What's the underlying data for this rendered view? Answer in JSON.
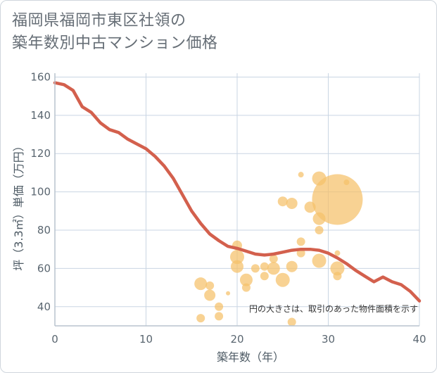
{
  "title_lines": [
    "福岡県福岡市東区社領の",
    "築年数別中古マンション価格"
  ],
  "chart_data": {
    "type": "scatter",
    "title": "福岡県福岡市東区社領の築年数別中古マンション価格",
    "xlabel": "築年数（年）",
    "ylabel": "坪（3.3㎡）単価（万円）",
    "xlim": [
      0,
      40
    ],
    "ylim": [
      30,
      162
    ],
    "xticks": [
      0,
      10,
      20,
      30,
      40
    ],
    "yticks": [
      40,
      60,
      80,
      100,
      120,
      140,
      160
    ],
    "grid": true,
    "annotation": "円の大きさは、取引のあった物件面積を示す",
    "colors": {
      "bubble": "#f5c06a",
      "line": "#d3604d",
      "grid": "#c9d5e3",
      "axis": "#b9c3cd"
    },
    "trend": {
      "x": [
        0,
        1,
        2,
        3,
        4,
        5,
        6,
        7,
        8,
        9,
        10,
        11,
        12,
        13,
        14,
        15,
        16,
        17,
        18,
        19,
        20,
        21,
        22,
        23,
        24,
        25,
        26,
        27,
        28,
        29,
        30,
        31,
        32,
        33,
        34,
        35,
        36,
        37,
        38,
        39,
        40
      ],
      "y": [
        157,
        156,
        153,
        144.5,
        141.5,
        136,
        132.5,
        131,
        127.5,
        125,
        122.5,
        118.5,
        113.5,
        107,
        98.5,
        90,
        83.5,
        78,
        74.5,
        71.5,
        70.5,
        69,
        67.5,
        67,
        67.5,
        68.5,
        69.5,
        70,
        70,
        69.5,
        68,
        65.5,
        62.5,
        59,
        56,
        53,
        55.5,
        53,
        51.5,
        48,
        43
      ]
    },
    "points": [
      {
        "x": 16,
        "y": 52,
        "size": 9
      },
      {
        "x": 16,
        "y": 34,
        "size": 6
      },
      {
        "x": 17,
        "y": 51,
        "size": 6
      },
      {
        "x": 17,
        "y": 46,
        "size": 8
      },
      {
        "x": 18,
        "y": 40,
        "size": 6
      },
      {
        "x": 18,
        "y": 35,
        "size": 6
      },
      {
        "x": 19,
        "y": 47,
        "size": 3
      },
      {
        "x": 20,
        "y": 72,
        "size": 7
      },
      {
        "x": 20,
        "y": 66,
        "size": 10
      },
      {
        "x": 20,
        "y": 61,
        "size": 9
      },
      {
        "x": 21,
        "y": 54,
        "size": 9
      },
      {
        "x": 21,
        "y": 50,
        "size": 6
      },
      {
        "x": 22,
        "y": 60,
        "size": 6
      },
      {
        "x": 23,
        "y": 61,
        "size": 6
      },
      {
        "x": 23,
        "y": 56,
        "size": 6
      },
      {
        "x": 24,
        "y": 65,
        "size": 6
      },
      {
        "x": 24,
        "y": 60,
        "size": 9
      },
      {
        "x": 25,
        "y": 95,
        "size": 7
      },
      {
        "x": 25,
        "y": 54,
        "size": 10
      },
      {
        "x": 26,
        "y": 94,
        "size": 8
      },
      {
        "x": 26,
        "y": 61,
        "size": 8
      },
      {
        "x": 26,
        "y": 32,
        "size": 6
      },
      {
        "x": 27,
        "y": 109,
        "size": 4
      },
      {
        "x": 27,
        "y": 74,
        "size": 6
      },
      {
        "x": 27,
        "y": 68,
        "size": 6
      },
      {
        "x": 28,
        "y": 92,
        "size": 8
      },
      {
        "x": 29,
        "y": 107,
        "size": 10
      },
      {
        "x": 29,
        "y": 86,
        "size": 9
      },
      {
        "x": 29,
        "y": 80,
        "size": 6
      },
      {
        "x": 29,
        "y": 64,
        "size": 10
      },
      {
        "x": 31,
        "y": 96,
        "size": 36
      },
      {
        "x": 31,
        "y": 68,
        "size": 4
      },
      {
        "x": 31,
        "y": 60,
        "size": 10
      },
      {
        "x": 31,
        "y": 56,
        "size": 6
      },
      {
        "x": 32,
        "y": 105,
        "size": 4
      }
    ]
  }
}
